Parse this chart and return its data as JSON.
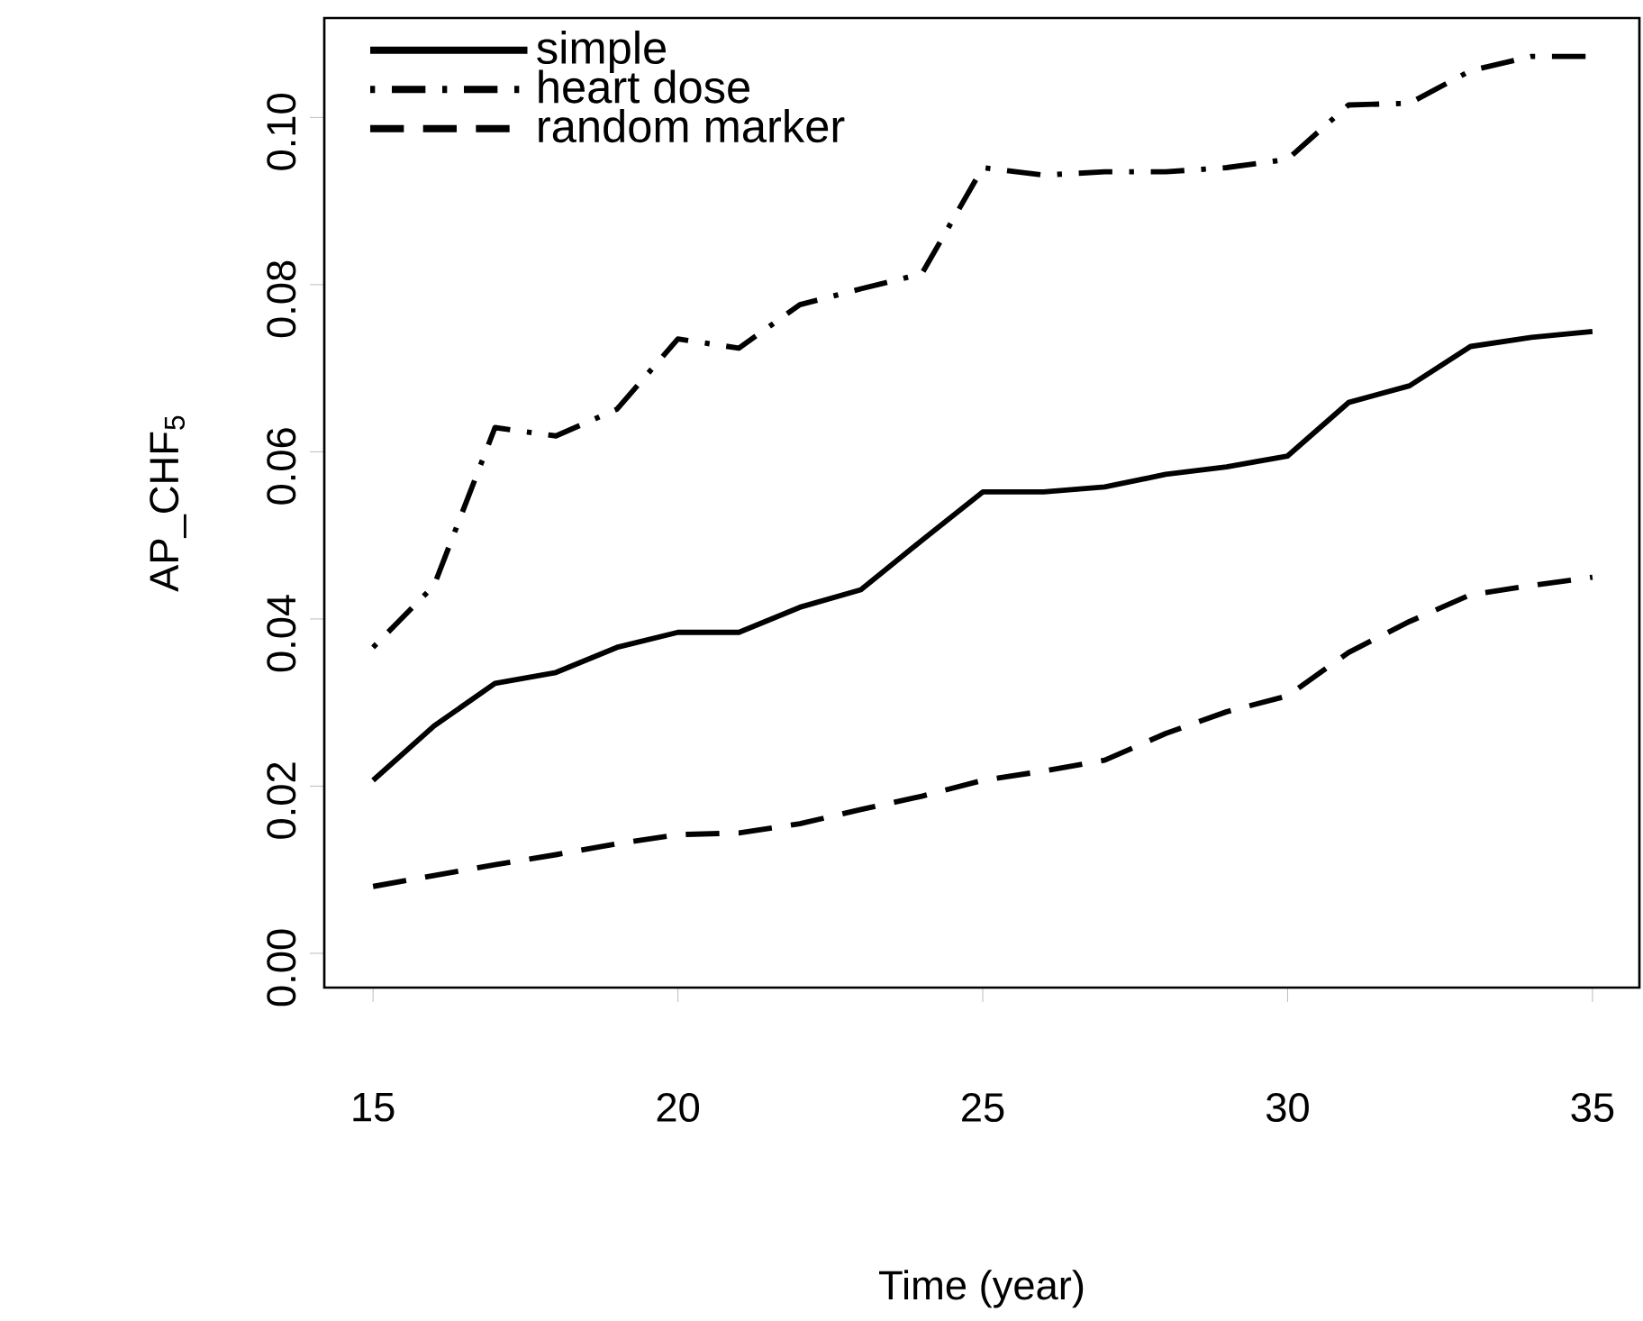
{
  "chart_data": {
    "type": "line",
    "xlabel": "Time (year)",
    "ylabel": "AP_CHF$_{5}$",
    "x": [
      15,
      16,
      17,
      18,
      19,
      20,
      21,
      22,
      23,
      24,
      25,
      26,
      27,
      28,
      29,
      30,
      31,
      32,
      33,
      34,
      35
    ],
    "series": [
      {
        "name": "simple",
        "color": "#000000",
        "line_style": "solid",
        "values": [
          0.0207,
          0.0272,
          0.0323,
          0.0336,
          0.0366,
          0.0384,
          0.0384,
          0.0414,
          0.0435,
          0.0494,
          0.0552,
          0.0552,
          0.0558,
          0.0573,
          0.0582,
          0.0595,
          0.0659,
          0.0679,
          0.0726,
          0.0737,
          0.0744
        ]
      },
      {
        "name": "heart dose",
        "color": "#000000",
        "line_style": "dashdot",
        "values": [
          0.0366,
          0.044,
          0.0629,
          0.0619,
          0.0651,
          0.0735,
          0.0724,
          0.0776,
          0.0795,
          0.0813,
          0.094,
          0.0931,
          0.0935,
          0.0935,
          0.094,
          0.095,
          0.1015,
          0.1017,
          0.1056,
          0.1073,
          0.1073
        ]
      },
      {
        "name": "random marker",
        "color": "#000000",
        "line_style": "dashed",
        "values": [
          0.008,
          0.0093,
          0.0106,
          0.0118,
          0.0131,
          0.0142,
          0.0144,
          0.0155,
          0.0172,
          0.0188,
          0.0207,
          0.0218,
          0.0231,
          0.0263,
          0.0289,
          0.0308,
          0.036,
          0.0397,
          0.0429,
          0.044,
          0.045
        ]
      }
    ],
    "xlim": [
      14.2,
      35.77
    ],
    "ylim": [
      -0.0041,
      0.1119
    ],
    "xticks": [
      15,
      20,
      25,
      30,
      35
    ],
    "yticks": [
      {
        "value": 0,
        "label": "0.00"
      },
      {
        "value": 0.02,
        "label": "0.02"
      },
      {
        "value": 0.04,
        "label": "0.04"
      },
      {
        "value": 0.06,
        "label": "0.06"
      },
      {
        "value": 0.08,
        "label": "0.08"
      },
      {
        "value": 0.1,
        "label": "0.10"
      }
    ],
    "grid": false,
    "legend": "top left",
    "marker": "none"
  }
}
